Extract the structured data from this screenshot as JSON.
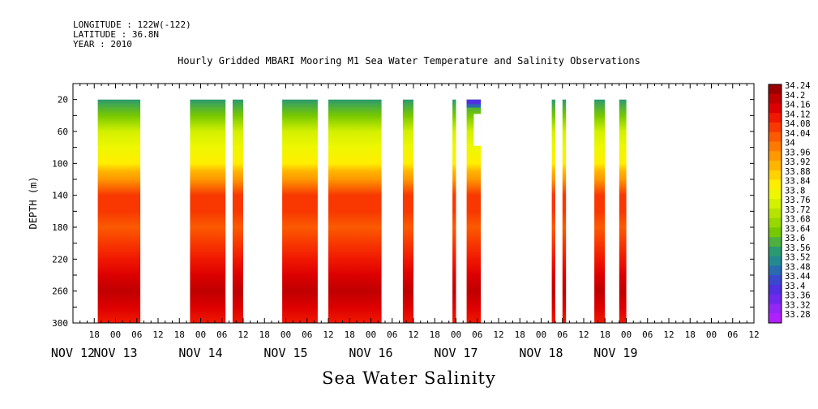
{
  "header": {
    "longitude": "LONGITUDE : 122W(-122)",
    "latitude": "LATITUDE : 36.8N",
    "year": "YEAR : 2010"
  },
  "title": "Hourly Gridded MBARI Mooring M1 Sea Water Temperature and Salinity Observations",
  "bottom_title": "Sea Water Salinity",
  "chart_data": {
    "type": "heatmap",
    "title": "Hourly Gridded MBARI Mooring M1 Sea Water Temperature and Salinity Observations",
    "subtitle": "Sea Water Salinity",
    "ylabel": "DEPTH (m)",
    "xlabel": "",
    "y_ticks": [
      20,
      60,
      100,
      140,
      180,
      220,
      260,
      300
    ],
    "y_range": [
      0,
      300
    ],
    "y_inverted": true,
    "x_range_hours": [
      -12,
      180
    ],
    "x_hour_tick_labels": [
      "18",
      "00",
      "06",
      "12",
      "18",
      "00",
      "06",
      "12",
      "18",
      "00",
      "06",
      "12",
      "18",
      "00",
      "06",
      "12",
      "18",
      "00",
      "06",
      "12",
      "18",
      "00",
      "06",
      "12",
      "18",
      "00",
      "06",
      "12",
      "18",
      "00",
      "06",
      "12"
    ],
    "x_day_labels": [
      "NOV 12",
      "NOV 13",
      "NOV 14",
      "NOV 15",
      "NOV 16",
      "NOV 17",
      "NOV 18",
      "NOV 19"
    ],
    "x_day_label_hours": [
      -12,
      0,
      24,
      48,
      72,
      96,
      120,
      141
    ],
    "colorbar_labels": [
      "34.24",
      "34.2",
      "34.16",
      "34.12",
      "34.08",
      "34.04",
      "34",
      "33.96",
      "33.92",
      "33.88",
      "33.84",
      "33.8",
      "33.76",
      "33.72",
      "33.68",
      "33.64",
      "33.6",
      "33.56",
      "33.52",
      "33.48",
      "33.44",
      "33.4",
      "33.36",
      "33.32",
      "33.28"
    ],
    "depth_profile": [
      {
        "depth": 20,
        "value": 33.56
      },
      {
        "depth": 40,
        "value": 33.66
      },
      {
        "depth": 60,
        "value": 33.76
      },
      {
        "depth": 80,
        "value": 33.82
      },
      {
        "depth": 100,
        "value": 33.86
      },
      {
        "depth": 110,
        "value": 33.92
      },
      {
        "depth": 120,
        "value": 33.97
      },
      {
        "depth": 140,
        "value": 34.06
      },
      {
        "depth": 160,
        "value": 34.08
      },
      {
        "depth": 180,
        "value": 34.04
      },
      {
        "depth": 200,
        "value": 34.07
      },
      {
        "depth": 220,
        "value": 34.14
      },
      {
        "depth": 240,
        "value": 34.18
      },
      {
        "depth": 260,
        "value": 34.21
      },
      {
        "depth": 280,
        "value": 34.17
      },
      {
        "depth": 300,
        "value": 34.14
      }
    ],
    "data_segments": [
      {
        "start_hour": -5,
        "end_hour": 7
      },
      {
        "start_hour": 21,
        "end_hour": 31
      },
      {
        "start_hour": 33,
        "end_hour": 36
      },
      {
        "start_hour": 47,
        "end_hour": 57
      },
      {
        "start_hour": 60,
        "end_hour": 75
      },
      {
        "start_hour": 81,
        "end_hour": 84
      },
      {
        "start_hour": 95,
        "end_hour": 96
      },
      {
        "start_hour": 99,
        "end_hour": 103
      },
      {
        "start_hour": 123,
        "end_hour": 124
      },
      {
        "start_hour": 126,
        "end_hour": 127
      },
      {
        "start_hour": 135,
        "end_hour": 138
      },
      {
        "start_hour": 142,
        "end_hour": 144
      }
    ],
    "anomalies": [
      {
        "start_hour": 99,
        "end_hour": 103,
        "depth_from": 20,
        "depth_to": 26,
        "value": 33.4
      },
      {
        "start_hour": 99,
        "end_hour": 103,
        "depth_from": 26,
        "depth_to": 30,
        "value": 33.48
      },
      {
        "start_hour": 101,
        "end_hour": 103,
        "depth_from": 38,
        "depth_to": 78,
        "value": null
      }
    ]
  }
}
